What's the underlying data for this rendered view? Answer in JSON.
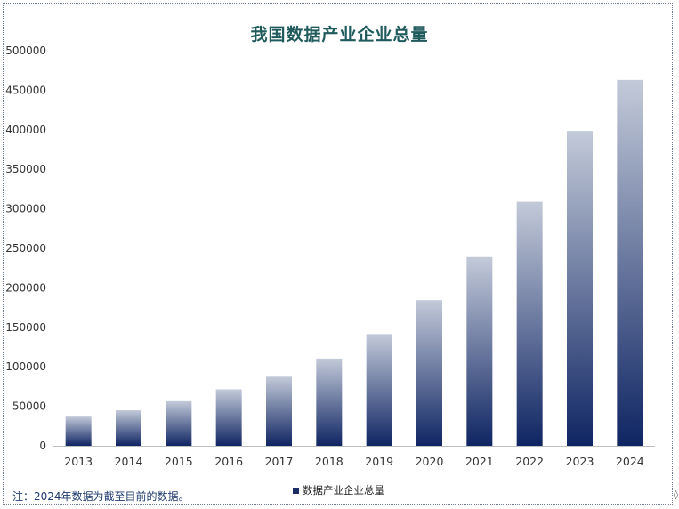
{
  "note": "注：2024年数据为截至目前的数据。",
  "colors": {
    "bar_top": "#c3cad9",
    "bar_bottom": "#0f2563",
    "title": "#1f5a5c",
    "axis": "#bfbfbf"
  },
  "chart_data": {
    "type": "bar",
    "title": "我国数据产业企业总量",
    "xlabel": "",
    "ylabel": "",
    "categories": [
      "2013",
      "2014",
      "2015",
      "2016",
      "2017",
      "2018",
      "2019",
      "2020",
      "2021",
      "2022",
      "2023",
      "2024"
    ],
    "series": [
      {
        "name": "数据产业企业总量",
        "values": [
          37000,
          45000,
          56500,
          71500,
          87500,
          110500,
          141500,
          184500,
          239000,
          309000,
          398500,
          463000
        ]
      }
    ],
    "ylim": [
      0,
      500000
    ],
    "yticks": [
      "0",
      "50000",
      "100000",
      "150000",
      "200000",
      "250000",
      "300000",
      "350000",
      "400000",
      "450000",
      "500000"
    ],
    "grid": false,
    "legend_position": "bottom"
  }
}
